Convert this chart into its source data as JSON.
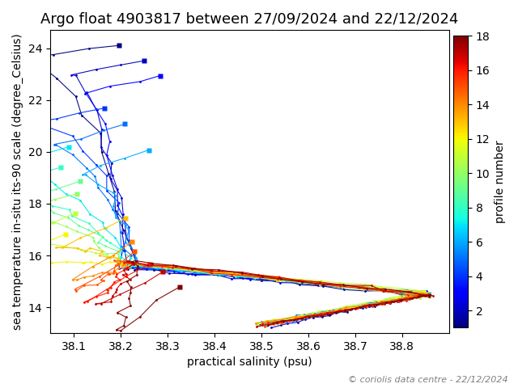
{
  "title": "Argo float 4903817 between 27/09/2024 and 22/12/2024",
  "xlabel": "practical salinity (psu)",
  "ylabel": "sea temperature in-situ its-90 scale (degree_Celsius)",
  "colorbar_label": "profile number",
  "xlim": [
    38.05,
    38.9
  ],
  "ylim": [
    13.0,
    24.7
  ],
  "xticks": [
    38.1,
    38.2,
    38.3,
    38.4,
    38.5,
    38.6,
    38.7,
    38.8
  ],
  "yticks": [
    14,
    16,
    18,
    20,
    22,
    24
  ],
  "cmap": "jet",
  "n_profiles": 18,
  "vmin": 1,
  "vmax": 18,
  "colorbar_ticks": [
    2,
    4,
    6,
    8,
    10,
    12,
    14,
    16,
    18
  ],
  "copyright_text": "© coriolis data centre - 22/12/2024",
  "title_fontsize": 13,
  "label_fontsize": 10,
  "tick_fontsize": 10,
  "colorbar_fontsize": 10
}
